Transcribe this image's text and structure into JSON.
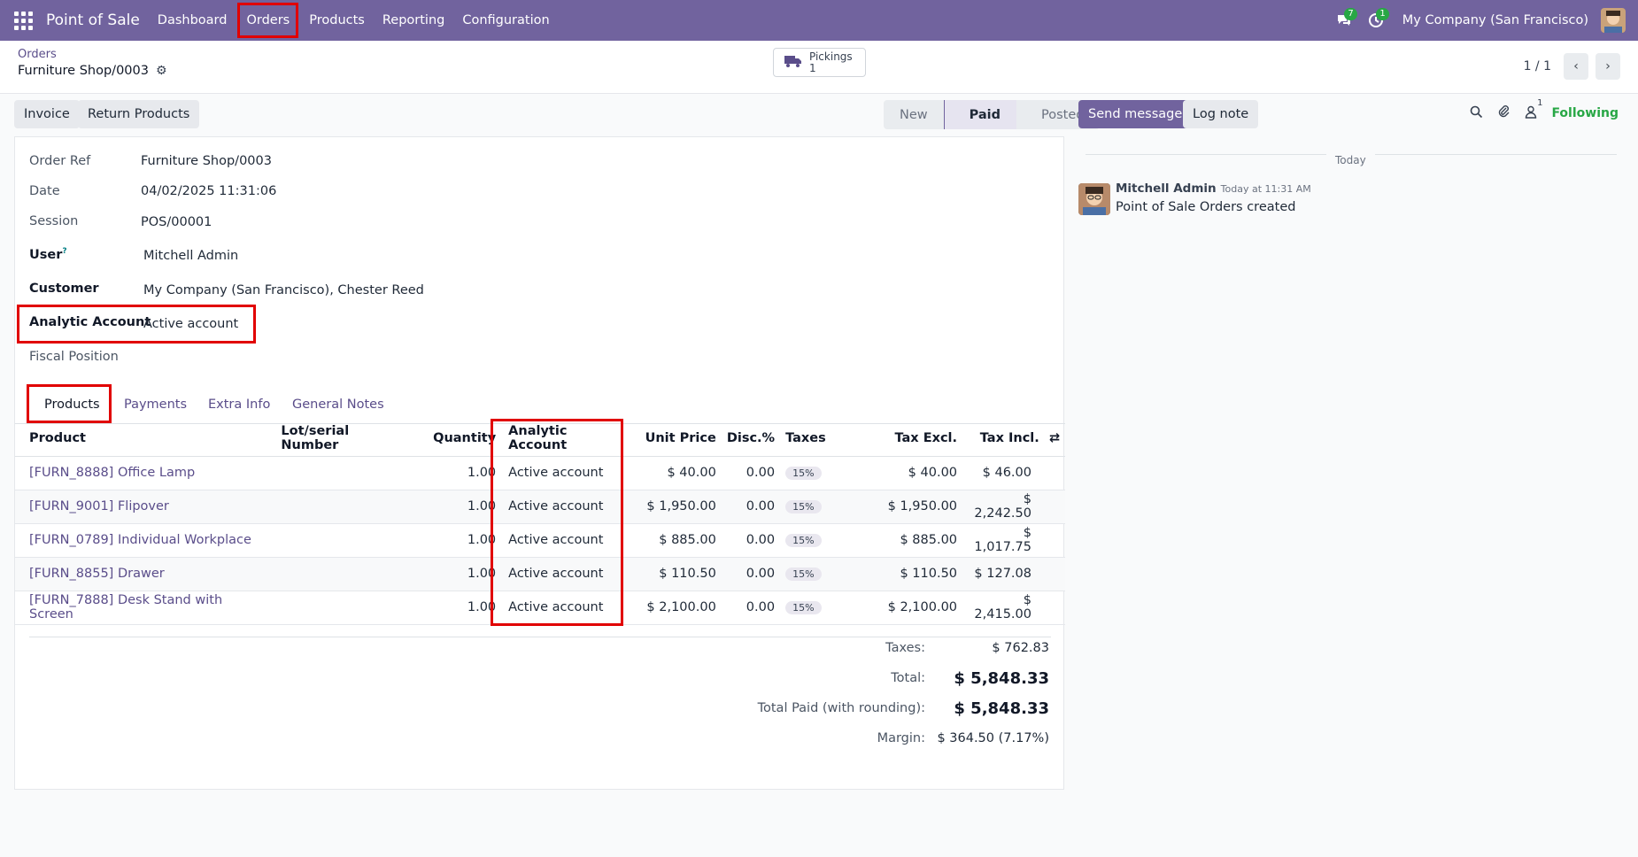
{
  "topnav": {
    "app_name": "Point of Sale",
    "menu": [
      "Dashboard",
      "Orders",
      "Products",
      "Reporting",
      "Configuration"
    ],
    "messages_badge": "7",
    "activities_badge": "1",
    "company": "My Company (San Francisco)"
  },
  "control": {
    "breadcrumb": "Orders",
    "record_title": "Furniture Shop/0003",
    "pickings_label": "Pickings",
    "pickings_count": "1",
    "pager": "1 / 1"
  },
  "actions": {
    "invoice": "Invoice",
    "return_products": "Return Products",
    "status": [
      "New",
      "Paid",
      "Posted"
    ],
    "active_status": "Paid"
  },
  "form": {
    "order_ref_label": "Order Ref",
    "order_ref": "Furniture Shop/0003",
    "date_label": "Date",
    "date": "04/02/2025 11:31:06",
    "session_label": "Session",
    "session": "POS/00001",
    "user_label": "User",
    "user_help": "?",
    "user": "Mitchell Admin",
    "customer_label": "Customer",
    "customer": "My Company (San Francisco), Chester Reed",
    "analytic_label": "Analytic Account",
    "analytic": "Active account",
    "fiscal_label": "Fiscal Position"
  },
  "tabs": [
    "Products",
    "Payments",
    "Extra Info",
    "General Notes"
  ],
  "lines": {
    "headers": [
      "Product",
      "Lot/serial Number",
      "Quantity",
      "Analytic Account",
      "Unit Price",
      "Disc.%",
      "Taxes",
      "Tax Excl.",
      "Tax Incl."
    ],
    "rows": [
      {
        "product": "[FURN_8888] Office Lamp",
        "qty": "1.00",
        "analytic": "Active account",
        "price": "$ 40.00",
        "disc": "0.00",
        "tax": "15%",
        "excl": "$ 40.00",
        "incl": "$ 46.00"
      },
      {
        "product": "[FURN_9001] Flipover",
        "qty": "1.00",
        "analytic": "Active account",
        "price": "$ 1,950.00",
        "disc": "0.00",
        "tax": "15%",
        "excl": "$ 1,950.00",
        "incl": "$ 2,242.50"
      },
      {
        "product": "[FURN_0789] Individual Workplace",
        "qty": "1.00",
        "analytic": "Active account",
        "price": "$ 885.00",
        "disc": "0.00",
        "tax": "15%",
        "excl": "$ 885.00",
        "incl": "$ 1,017.75"
      },
      {
        "product": "[FURN_8855] Drawer",
        "qty": "1.00",
        "analytic": "Active account",
        "price": "$ 110.50",
        "disc": "0.00",
        "tax": "15%",
        "excl": "$ 110.50",
        "incl": "$ 127.08"
      },
      {
        "product": "[FURN_7888] Desk Stand with Screen",
        "qty": "1.00",
        "analytic": "Active account",
        "price": "$ 2,100.00",
        "disc": "0.00",
        "tax": "15%",
        "excl": "$ 2,100.00",
        "incl": "$ 2,415.00"
      }
    ]
  },
  "totals": {
    "taxes_label": "Taxes:",
    "taxes": "$ 762.83",
    "total_label": "Total:",
    "total": "$ 5,848.33",
    "paid_label": "Total Paid (with rounding):",
    "paid": "$ 5,848.33",
    "margin_label": "Margin:",
    "margin": "$ 364.50 (7.17%)"
  },
  "chatter": {
    "send_message": "Send message",
    "log_note": "Log note",
    "followers_count": "1",
    "following": "Following",
    "today": "Today",
    "author": "Mitchell Admin",
    "time": "Today at 11:31 AM",
    "body": "Point of Sale Orders created"
  },
  "colors": {
    "brand": "#71639e",
    "highlight": "#e10000",
    "following": "#28a745"
  }
}
